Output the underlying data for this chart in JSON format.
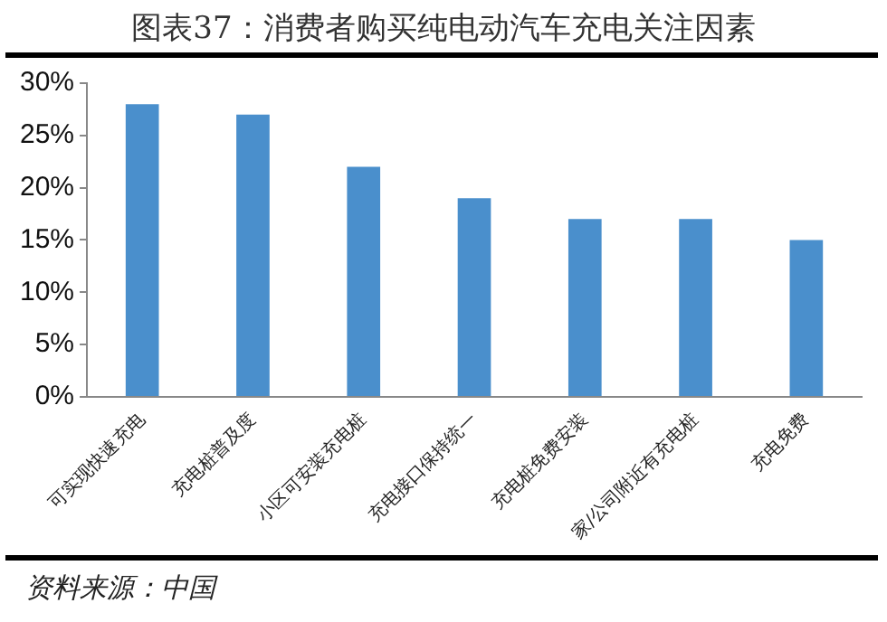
{
  "chart_data": {
    "type": "bar",
    "title": "图表37：消费者购买纯电动汽车充电关注因素",
    "categories": [
      "可实现快速充电",
      "充电桩普及度",
      "小区可安装充电桩",
      "充电接口保持统一",
      "充电桩免费安装",
      "家/公司附近有充电桩",
      "充电免费"
    ],
    "values": [
      28,
      27,
      22,
      19,
      17,
      17,
      15
    ],
    "color": "#4a8fcc",
    "ylim": [
      0,
      30
    ],
    "yticks": [
      {
        "value": 0,
        "label": "0%"
      },
      {
        "value": 5,
        "label": "5%"
      },
      {
        "value": 10,
        "label": "10%"
      },
      {
        "value": 15,
        "label": "15%"
      },
      {
        "value": 20,
        "label": "20%"
      },
      {
        "value": 25,
        "label": "25%"
      },
      {
        "value": 30,
        "label": "30%"
      }
    ],
    "grid": false,
    "legend": false,
    "annotations": [
      "资料来源：中国"
    ]
  }
}
